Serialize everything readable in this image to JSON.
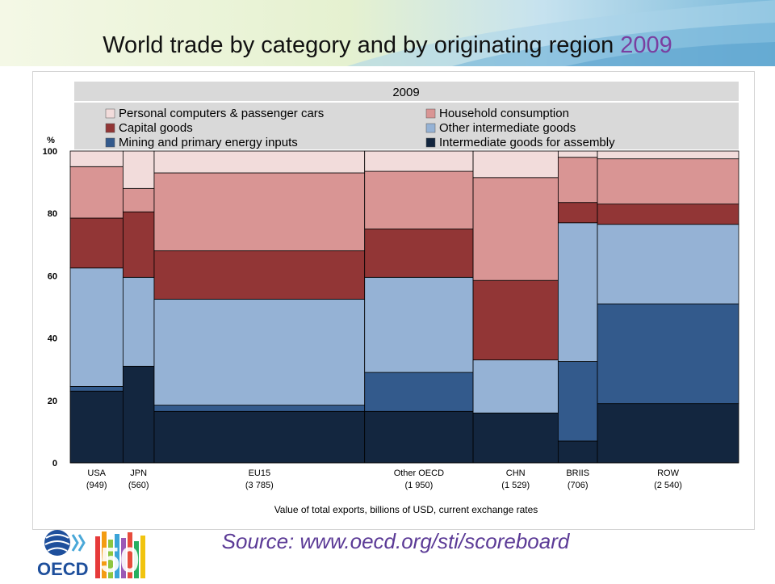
{
  "slide": {
    "title": "World trade by category and by originating region",
    "title_year": "2009",
    "source": "Source: www.oecd.org/sti/scoreboard"
  },
  "logo": {
    "text": "OECD",
    "anniversary": "50"
  },
  "chart_data": {
    "type": "bar",
    "variant": "marimekko-100%-stacked",
    "title": "2009",
    "ylabel": "%",
    "xlabel": "Value of total exports, billions of USD, current exchange rates",
    "ylim": [
      0,
      100
    ],
    "yticks": [
      0,
      20,
      40,
      60,
      80,
      100
    ],
    "grid": false,
    "legend_position": "top",
    "categories": [
      "USA",
      "JPN",
      "EU15",
      "Other OECD",
      "CHN",
      "BRIIS",
      "ROW"
    ],
    "category_labels": [
      "(949)",
      "(560)",
      "(3 785)",
      "(1 950)",
      "(1 529)",
      "(706)",
      "(2 540)"
    ],
    "widths": [
      949,
      560,
      3785,
      1950,
      1529,
      706,
      2540
    ],
    "series": [
      {
        "name": "Intermediate goods for assembly",
        "color": "#13263f",
        "values": [
          23,
          31,
          16.5,
          16.5,
          16,
          7,
          19
        ]
      },
      {
        "name": "Mining and primary energy inputs",
        "color": "#335a8c",
        "values": [
          1.5,
          0,
          2,
          12.5,
          0,
          25.5,
          32
        ]
      },
      {
        "name": "Other intermediate goods",
        "color": "#95b2d5",
        "values": [
          38,
          28.5,
          34,
          30.5,
          17,
          44.5,
          25.5
        ]
      },
      {
        "name": "Capital goods",
        "color": "#923636",
        "values": [
          16,
          21,
          15.5,
          15.5,
          25.5,
          6.5,
          6.5
        ]
      },
      {
        "name": "Household consumption",
        "color": "#d99594",
        "values": [
          16.5,
          7.5,
          25,
          18.5,
          33,
          14.5,
          14.5
        ]
      },
      {
        "name": "Personal computers & passenger cars",
        "color": "#f2dcdb",
        "values": [
          5,
          12,
          7,
          6.5,
          8.5,
          2,
          2.5
        ]
      }
    ],
    "legend_layout": [
      "Personal computers & passenger cars",
      "Household consumption",
      "Capital goods",
      "Other intermediate goods",
      "Mining and primary energy inputs",
      "Intermediate goods for assembly"
    ]
  }
}
